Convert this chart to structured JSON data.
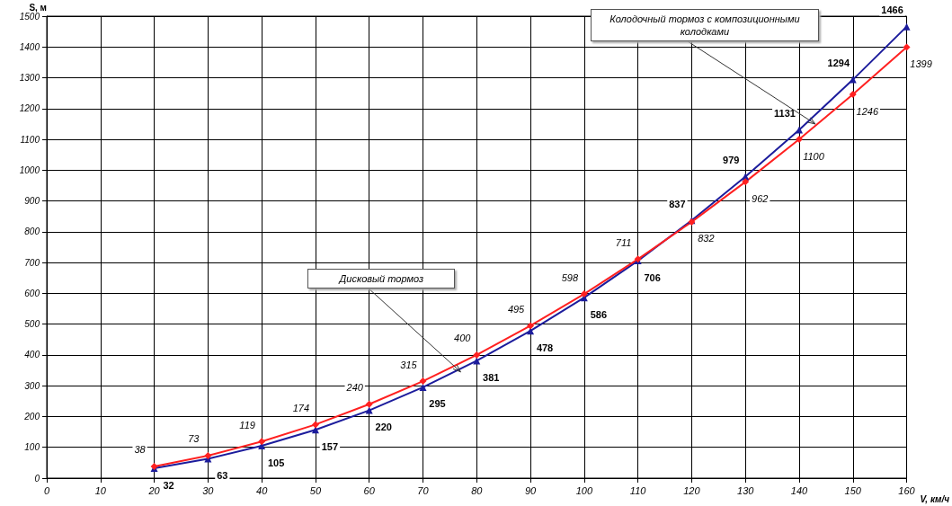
{
  "chart_data": {
    "type": "line",
    "xlabel": "V, км/ч",
    "ylabel": "S, м",
    "x": [
      20,
      30,
      40,
      50,
      60,
      70,
      80,
      90,
      100,
      110,
      120,
      130,
      140,
      150,
      160
    ],
    "series": [
      {
        "color": "#1c1c9c",
        "marker": "triangle",
        "values": [
          32,
          63,
          105,
          157,
          220,
          295,
          381,
          478,
          586,
          706,
          837,
          979,
          1131,
          1294,
          1466
        ]
      },
      {
        "color": "#ff2020",
        "marker": "diamond",
        "values": [
          38,
          73,
          119,
          174,
          240,
          315,
          400,
          495,
          598,
          711,
          832,
          962,
          1100,
          1246,
          1399
        ]
      }
    ],
    "data_labels": true,
    "xlim": [
      0,
      160
    ],
    "xticks": [
      0,
      10,
      20,
      30,
      40,
      50,
      60,
      70,
      80,
      90,
      100,
      110,
      120,
      130,
      140,
      150,
      160
    ],
    "ylim": [
      0,
      1500
    ],
    "yticks": [
      0,
      100,
      200,
      300,
      400,
      500,
      600,
      700,
      800,
      900,
      1000,
      1100,
      1200,
      1300,
      1400,
      1500
    ],
    "grid": true,
    "line_style": "solid",
    "annotations": [
      {
        "text": "Колодочный тормоз с композиционными колодками",
        "x": 143,
        "y": 1150
      },
      {
        "text": "Дисковый тормоз",
        "x": 77,
        "y": 345
      }
    ]
  }
}
